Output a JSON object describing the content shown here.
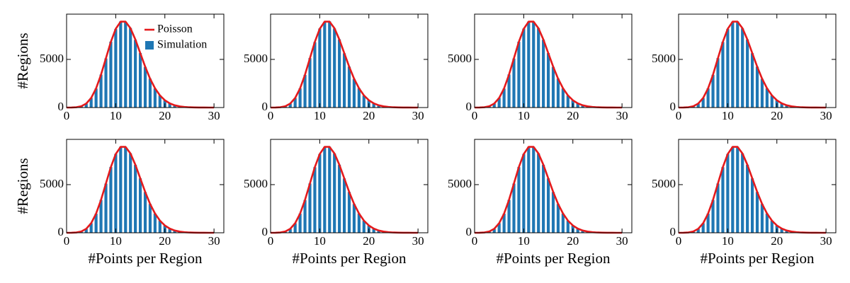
{
  "chart_data": [
    {
      "type": "bar",
      "x": [
        0,
        1,
        2,
        3,
        4,
        5,
        6,
        7,
        8,
        9,
        10,
        11,
        12,
        13,
        14,
        15,
        16,
        17,
        18,
        19,
        20,
        21,
        22,
        23,
        24,
        25,
        26,
        27,
        28,
        29,
        30
      ],
      "series": [
        {
          "name": "Poisson",
          "color": "#e41a1c",
          "style": "line",
          "values": [
            0,
            6,
            34,
            138,
            414,
            994,
            1988,
            3407,
            5111,
            6814,
            8177,
            8921,
            8921,
            8234,
            7058,
            5646,
            4235,
            2989,
            1993,
            1259,
            755,
            432,
            235,
            123,
            61,
            29,
            14,
            6,
            3,
            1,
            0
          ]
        },
        {
          "name": "Simulation",
          "color": "#1f77b4",
          "style": "bar",
          "values": [
            0,
            5,
            37,
            141,
            409,
            1003,
            1975,
            3420,
            5098,
            6840,
            8150,
            8945,
            8902,
            8260,
            7031,
            5662,
            4218,
            3004,
            1981,
            1270,
            748,
            440,
            229,
            127,
            58,
            31,
            12,
            7,
            2,
            1,
            0
          ]
        }
      ],
      "ylabel": "#Regions",
      "legend": "upper right",
      "xlim": [
        0,
        32
      ],
      "ylim": [
        0,
        9700
      ],
      "xticks": [
        0,
        10,
        20,
        30
      ],
      "yticks": [
        0,
        5000
      ]
    },
    {
      "type": "bar",
      "x": [
        0,
        1,
        2,
        3,
        4,
        5,
        6,
        7,
        8,
        9,
        10,
        11,
        12,
        13,
        14,
        15,
        16,
        17,
        18,
        19,
        20,
        21,
        22,
        23,
        24,
        25,
        26,
        27,
        28,
        29,
        30
      ],
      "series": [
        {
          "color": "#e41a1c",
          "style": "line",
          "values": [
            0,
            6,
            34,
            138,
            414,
            994,
            1988,
            3407,
            5111,
            6814,
            8177,
            8921,
            8921,
            8234,
            7058,
            5646,
            4235,
            2989,
            1993,
            1259,
            755,
            432,
            235,
            123,
            61,
            29,
            14,
            6,
            3,
            1,
            0
          ]
        },
        {
          "color": "#1f77b4",
          "style": "bar",
          "values": [
            1,
            7,
            31,
            135,
            420,
            985,
            2001,
            3391,
            5130,
            6790,
            8201,
            8898,
            8950,
            8210,
            7075,
            5630,
            4250,
            2970,
            2008,
            1245,
            763,
            425,
            241,
            118,
            64,
            27,
            15,
            5,
            3,
            0,
            0
          ]
        }
      ],
      "xlim": [
        0,
        32
      ],
      "ylim": [
        0,
        9700
      ],
      "xticks": [
        0,
        10,
        20,
        30
      ],
      "yticks": [
        0,
        5000
      ]
    },
    {
      "type": "bar",
      "x": [
        0,
        1,
        2,
        3,
        4,
        5,
        6,
        7,
        8,
        9,
        10,
        11,
        12,
        13,
        14,
        15,
        16,
        17,
        18,
        19,
        20,
        21,
        22,
        23,
        24,
        25,
        26,
        27,
        28,
        29,
        30
      ],
      "series": [
        {
          "color": "#e41a1c",
          "style": "line",
          "values": [
            0,
            6,
            34,
            138,
            414,
            994,
            1988,
            3407,
            5111,
            6814,
            8177,
            8921,
            8921,
            8234,
            7058,
            5646,
            4235,
            2989,
            1993,
            1259,
            755,
            432,
            235,
            123,
            61,
            29,
            14,
            6,
            3,
            1,
            0
          ]
        },
        {
          "color": "#1f77b4",
          "style": "bar",
          "values": [
            0,
            6,
            35,
            132,
            418,
            1010,
            1969,
            3432,
            5087,
            6831,
            8190,
            8930,
            8912,
            8248,
            7040,
            5655,
            4221,
            3010,
            1985,
            1262,
            751,
            436,
            232,
            125,
            60,
            30,
            13,
            6,
            2,
            1,
            0
          ]
        }
      ],
      "xlim": [
        0,
        32
      ],
      "ylim": [
        0,
        9700
      ],
      "xticks": [
        0,
        10,
        20,
        30
      ],
      "yticks": [
        0,
        5000
      ]
    },
    {
      "type": "bar",
      "x": [
        0,
        1,
        2,
        3,
        4,
        5,
        6,
        7,
        8,
        9,
        10,
        11,
        12,
        13,
        14,
        15,
        16,
        17,
        18,
        19,
        20,
        21,
        22,
        23,
        24,
        25,
        26,
        27,
        28,
        29,
        30
      ],
      "series": [
        {
          "color": "#e41a1c",
          "style": "line",
          "values": [
            0,
            6,
            34,
            138,
            414,
            994,
            1988,
            3407,
            5111,
            6814,
            8177,
            8921,
            8921,
            8234,
            7058,
            5646,
            4235,
            2989,
            1993,
            1259,
            755,
            432,
            235,
            123,
            61,
            29,
            14,
            6,
            3,
            1,
            0
          ]
        },
        {
          "color": "#1f77b4",
          "style": "bar",
          "values": [
            0,
            4,
            33,
            144,
            405,
            990,
            1995,
            3398,
            5125,
            6802,
            8160,
            8910,
            8940,
            8221,
            7066,
            5639,
            4244,
            2978,
            2001,
            1254,
            759,
            429,
            238,
            120,
            63,
            28,
            16,
            6,
            3,
            1,
            0
          ]
        }
      ],
      "xlim": [
        0,
        32
      ],
      "ylim": [
        0,
        9700
      ],
      "xticks": [
        0,
        10,
        20,
        30
      ],
      "yticks": [
        0,
        5000
      ]
    },
    {
      "type": "bar",
      "x": [
        0,
        1,
        2,
        3,
        4,
        5,
        6,
        7,
        8,
        9,
        10,
        11,
        12,
        13,
        14,
        15,
        16,
        17,
        18,
        19,
        20,
        21,
        22,
        23,
        24,
        25,
        26,
        27,
        28,
        29,
        30
      ],
      "series": [
        {
          "color": "#e41a1c",
          "style": "line",
          "values": [
            0,
            6,
            34,
            138,
            414,
            994,
            1988,
            3407,
            5111,
            6814,
            8177,
            8921,
            8921,
            8234,
            7058,
            5646,
            4235,
            2989,
            1993,
            1259,
            755,
            432,
            235,
            123,
            61,
            29,
            14,
            6,
            3,
            1,
            0
          ]
        },
        {
          "color": "#1f77b4",
          "style": "bar",
          "values": [
            0,
            6,
            36,
            139,
            411,
            998,
            1982,
            3415,
            5104,
            6825,
            8185,
            8937,
            8908,
            8242,
            7049,
            5651,
            4228,
            2995,
            1990,
            1265,
            752,
            434,
            233,
            124,
            60,
            29,
            13,
            7,
            3,
            1,
            0
          ]
        }
      ],
      "ylabel": "#Regions",
      "xlabel": "#Points per Region",
      "xlim": [
        0,
        32
      ],
      "ylim": [
        0,
        9700
      ],
      "xticks": [
        0,
        10,
        20,
        30
      ],
      "yticks": [
        0,
        5000
      ]
    },
    {
      "type": "bar",
      "x": [
        0,
        1,
        2,
        3,
        4,
        5,
        6,
        7,
        8,
        9,
        10,
        11,
        12,
        13,
        14,
        15,
        16,
        17,
        18,
        19,
        20,
        21,
        22,
        23,
        24,
        25,
        26,
        27,
        28,
        29,
        30
      ],
      "series": [
        {
          "color": "#e41a1c",
          "style": "line",
          "values": [
            0,
            6,
            34,
            138,
            414,
            994,
            1988,
            3407,
            5111,
            6814,
            8177,
            8921,
            8921,
            8234,
            7058,
            5646,
            4235,
            2989,
            1993,
            1259,
            755,
            432,
            235,
            123,
            61,
            29,
            14,
            6,
            3,
            1,
            0
          ]
        },
        {
          "color": "#1f77b4",
          "style": "bar",
          "values": [
            1,
            5,
            32,
            137,
            416,
            989,
            1993,
            3401,
            5117,
            6808,
            8169,
            8915,
            8933,
            8228,
            7062,
            5641,
            4240,
            2983,
            1997,
            1253,
            758,
            430,
            237,
            122,
            62,
            29,
            14,
            5,
            2,
            0,
            0
          ]
        }
      ],
      "xlabel": "#Points per Region",
      "xlim": [
        0,
        32
      ],
      "ylim": [
        0,
        9700
      ],
      "xticks": [
        0,
        10,
        20,
        30
      ],
      "yticks": [
        0,
        5000
      ]
    },
    {
      "type": "bar",
      "x": [
        0,
        1,
        2,
        3,
        4,
        5,
        6,
        7,
        8,
        9,
        10,
        11,
        12,
        13,
        14,
        15,
        16,
        17,
        18,
        19,
        20,
        21,
        22,
        23,
        24,
        25,
        26,
        27,
        28,
        29,
        30
      ],
      "series": [
        {
          "color": "#e41a1c",
          "style": "line",
          "values": [
            0,
            6,
            34,
            138,
            414,
            994,
            1988,
            3407,
            5111,
            6814,
            8177,
            8921,
            8921,
            8234,
            7058,
            5646,
            4235,
            2989,
            1993,
            1259,
            755,
            432,
            235,
            123,
            61,
            29,
            14,
            6,
            3,
            1,
            0
          ]
        },
        {
          "color": "#1f77b4",
          "style": "bar",
          "values": [
            0,
            7,
            34,
            140,
            413,
            996,
            1986,
            3410,
            5108,
            6819,
            8180,
            8926,
            8917,
            8238,
            7053,
            5648,
            4231,
            2991,
            1991,
            1260,
            754,
            433,
            234,
            123,
            61,
            30,
            14,
            6,
            3,
            1,
            0
          ]
        }
      ],
      "xlabel": "#Points per Region",
      "xlim": [
        0,
        32
      ],
      "ylim": [
        0,
        9700
      ],
      "xticks": [
        0,
        10,
        20,
        30
      ],
      "yticks": [
        0,
        5000
      ]
    },
    {
      "type": "bar",
      "x": [
        0,
        1,
        2,
        3,
        4,
        5,
        6,
        7,
        8,
        9,
        10,
        11,
        12,
        13,
        14,
        15,
        16,
        17,
        18,
        19,
        20,
        21,
        22,
        23,
        24,
        25,
        26,
        27,
        28,
        29,
        30
      ],
      "series": [
        {
          "color": "#e41a1c",
          "style": "line",
          "values": [
            0,
            6,
            34,
            138,
            414,
            994,
            1988,
            3407,
            5111,
            6814,
            8177,
            8921,
            8921,
            8234,
            7058,
            5646,
            4235,
            2989,
            1993,
            1259,
            755,
            432,
            235,
            123,
            61,
            29,
            14,
            6,
            3,
            1,
            0
          ]
        },
        {
          "color": "#1f77b4",
          "style": "bar",
          "values": [
            0,
            6,
            35,
            136,
            415,
            992,
            1990,
            3404,
            5114,
            6811,
            8174,
            8920,
            8925,
            8231,
            7059,
            5644,
            4237,
            2986,
            1995,
            1257,
            756,
            431,
            236,
            122,
            61,
            28,
            14,
            6,
            3,
            1,
            0
          ]
        }
      ],
      "xlabel": "#Points per Region",
      "xlim": [
        0,
        32
      ],
      "ylim": [
        0,
        9700
      ],
      "xticks": [
        0,
        10,
        20,
        30
      ],
      "yticks": [
        0,
        5000
      ]
    }
  ]
}
